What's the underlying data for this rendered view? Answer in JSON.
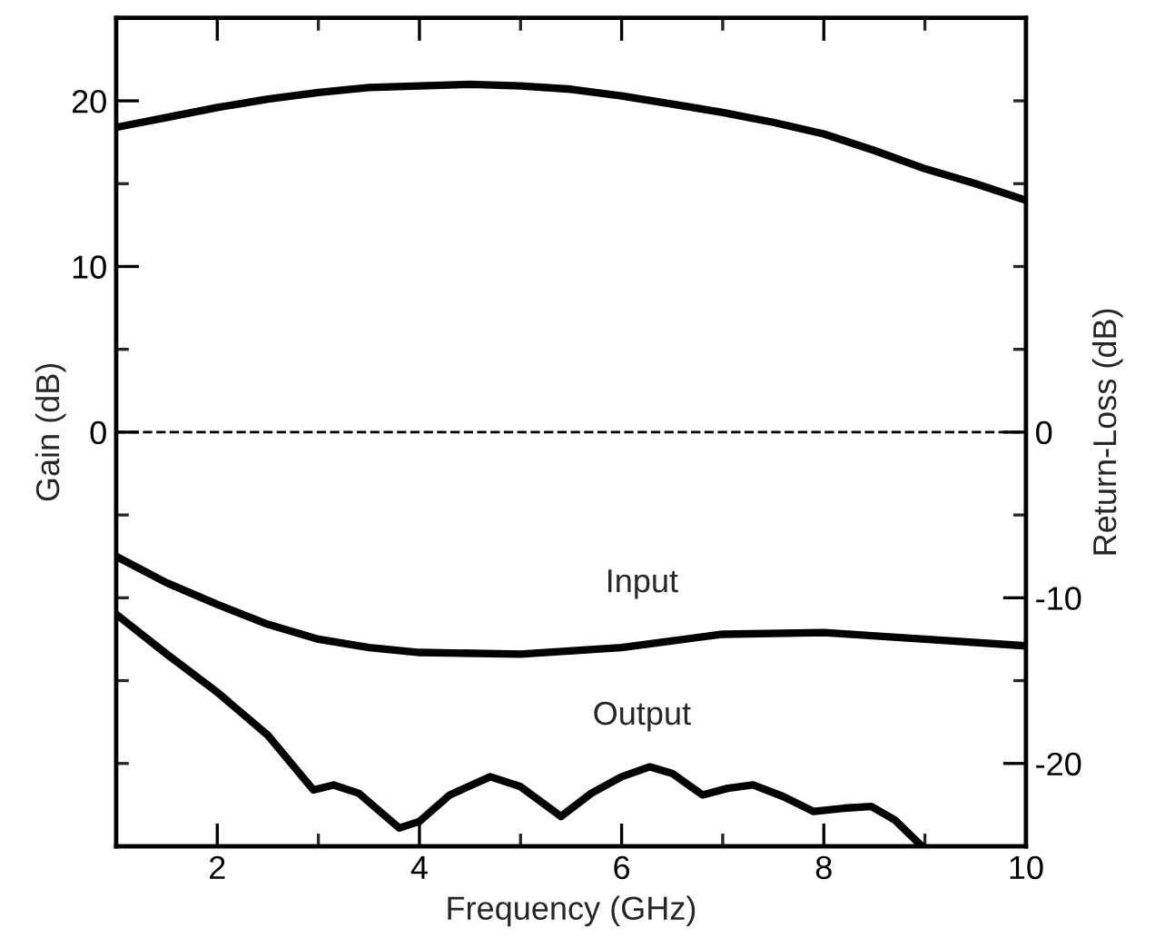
{
  "chart_data": {
    "type": "line",
    "xlabel": "Frequency (GHz)",
    "ylabel": "Gain (dB)",
    "y2label": "Return-Loss (dB)",
    "xlim": [
      1,
      10
    ],
    "xticks": [
      2,
      {
        "value": 3,
        "label": null
      },
      4,
      {
        "value": 5,
        "label": null
      },
      6,
      {
        "value": 7,
        "label": null
      },
      8,
      {
        "value": 9,
        "label": null
      },
      10
    ],
    "ylim": [
      -25,
      25
    ],
    "yticks": [
      {
        "value": -20,
        "label": null
      },
      {
        "value": -15,
        "label": null
      },
      {
        "value": -10,
        "label": null
      },
      {
        "value": -5,
        "label": null
      },
      0,
      {
        "value": 5,
        "label": null
      },
      10,
      {
        "value": 15,
        "label": null
      },
      20
    ],
    "y2lim": [
      -25,
      25
    ],
    "y2ticks": [
      -20,
      {
        "value": -15,
        "label": null
      },
      -10,
      {
        "value": -5,
        "label": null
      },
      0,
      {
        "value": 5,
        "label": null
      },
      {
        "value": 10,
        "label": null
      },
      {
        "value": 15,
        "label": null
      },
      {
        "value": 20,
        "label": null
      }
    ],
    "grid": false,
    "legend": false,
    "line_style": "solid",
    "marker": "none",
    "ref_lines": [
      {
        "axis": "y",
        "value": 0,
        "line_style": "dashed",
        "color": "#000000"
      }
    ],
    "series": [
      {
        "color": "#000000",
        "x": [
          1,
          1.5,
          2,
          2.5,
          3,
          3.5,
          4,
          4.5,
          5,
          5.5,
          6,
          6.5,
          7,
          7.5,
          8,
          8.5,
          9,
          9.5,
          10
        ],
        "values": [
          18.4,
          19.0,
          19.6,
          20.1,
          20.5,
          20.8,
          20.9,
          21.0,
          20.9,
          20.7,
          20.3,
          19.8,
          19.3,
          18.7,
          18.0,
          17.0,
          15.9,
          15.0,
          14.0
        ]
      },
      {
        "name": "Input",
        "color": "#000000",
        "x": [
          1,
          1.5,
          2,
          2.5,
          3,
          3.5,
          4,
          5,
          6,
          7,
          8,
          9,
          10
        ],
        "values": [
          -7.5,
          -9.1,
          -10.4,
          -11.6,
          -12.5,
          -13.0,
          -13.3,
          -13.4,
          -13.0,
          -12.2,
          -12.1,
          -12.5,
          -12.9
        ]
      },
      {
        "name": "Output",
        "color": "#000000",
        "x": [
          1,
          1.5,
          2,
          2.5,
          2.95,
          3.15,
          3.4,
          3.8,
          4.0,
          4.3,
          4.7,
          5.0,
          5.4,
          5.7,
          6.0,
          6.28,
          6.5,
          6.8,
          7.05,
          7.3,
          7.6,
          7.9,
          8.2,
          8.47,
          8.7,
          8.97
        ],
        "values": [
          -11.0,
          -13.4,
          -15.7,
          -18.3,
          -21.6,
          -21.3,
          -21.8,
          -23.9,
          -23.5,
          -21.9,
          -20.8,
          -21.4,
          -23.2,
          -21.8,
          -20.8,
          -20.2,
          -20.6,
          -21.9,
          -21.5,
          -21.3,
          -22.0,
          -22.9,
          -22.7,
          -22.6,
          -23.4,
          -25.0
        ]
      }
    ]
  }
}
